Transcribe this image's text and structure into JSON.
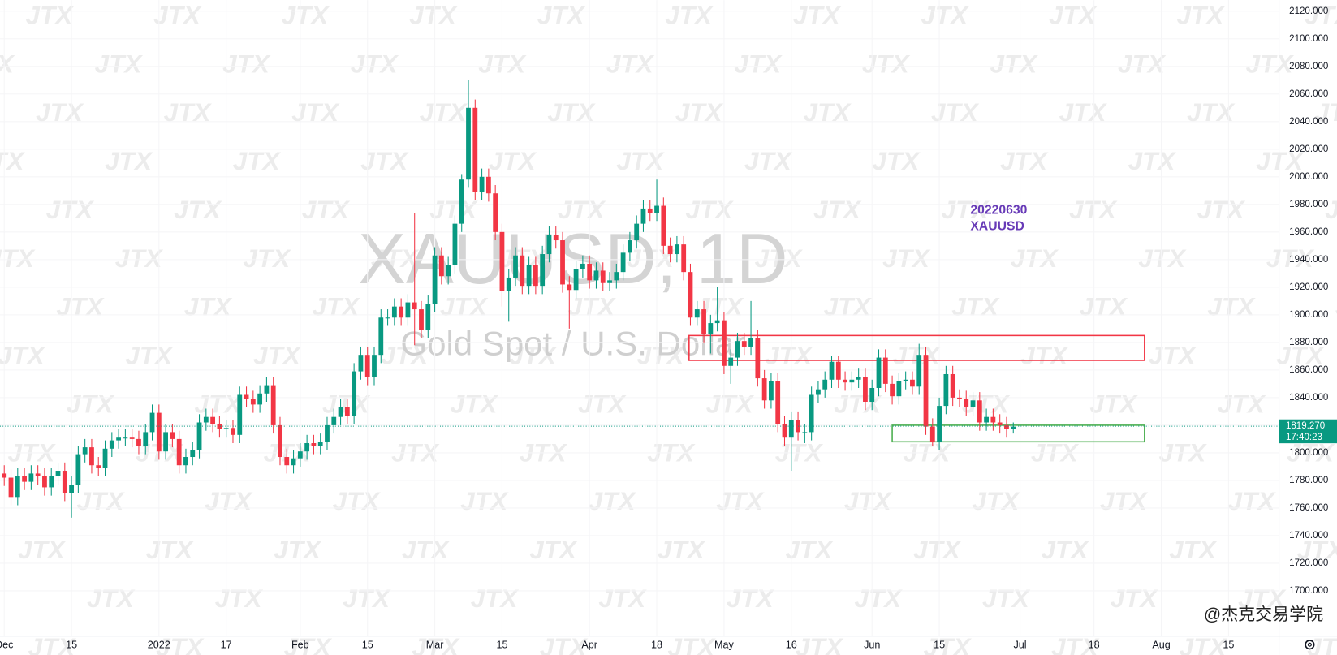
{
  "chart_data": {
    "type": "candlestick",
    "title": "XAUUSD, 1D",
    "subtitle": "Gold Spot / U.S. Dollar",
    "annotation": [
      "20220630",
      "XAUUSD"
    ],
    "watermark": "JTX",
    "credit": "@杰克交易学院",
    "up_color": "#089981",
    "down_color": "#f23645",
    "annotation_color": "#673ab7",
    "grid": true,
    "ylim": [
      1667.2,
      2128.0
    ],
    "yticks": [
      {
        "value": 1700,
        "label": "1700.000"
      },
      {
        "value": 1720,
        "label": "1720.000"
      },
      {
        "value": 1740,
        "label": "1740.000"
      },
      {
        "value": 1760,
        "label": "1760.000"
      },
      {
        "value": 1780,
        "label": "1780.000"
      },
      {
        "value": 1800,
        "label": "1800.000"
      },
      {
        "value": 1820,
        "label": "1820.000"
      },
      {
        "value": 1840,
        "label": "1840.000"
      },
      {
        "value": 1860,
        "label": "1860.000"
      },
      {
        "value": 1880,
        "label": "1880.000"
      },
      {
        "value": 1900,
        "label": "1900.000"
      },
      {
        "value": 1920,
        "label": "1920.000"
      },
      {
        "value": 1940,
        "label": "1940.000"
      },
      {
        "value": 1960,
        "label": "1960.000"
      },
      {
        "value": 1980,
        "label": "1980.000"
      },
      {
        "value": 2000,
        "label": "2000.000"
      },
      {
        "value": 2020,
        "label": "2020.000"
      },
      {
        "value": 2040,
        "label": "2040.000"
      },
      {
        "value": 2060,
        "label": "2060.000"
      },
      {
        "value": 2080,
        "label": "2080.000"
      },
      {
        "value": 2100,
        "label": "2100.000"
      },
      {
        "value": 2120,
        "label": "2120.000"
      }
    ],
    "xlim": [
      -0.63,
      189.5
    ],
    "xticks": [
      {
        "value": 0,
        "label": "Dec"
      },
      {
        "value": 10,
        "label": "15"
      },
      {
        "value": 23,
        "label": "2022"
      },
      {
        "value": 33,
        "label": "17"
      },
      {
        "value": 44,
        "label": "Feb"
      },
      {
        "value": 54,
        "label": "15"
      },
      {
        "value": 64,
        "label": "Mar"
      },
      {
        "value": 74,
        "label": "15"
      },
      {
        "value": 87,
        "label": "Apr"
      },
      {
        "value": 97,
        "label": "18"
      },
      {
        "value": 107,
        "label": "May"
      },
      {
        "value": 117,
        "label": "16"
      },
      {
        "value": 129,
        "label": "Jun"
      },
      {
        "value": 139,
        "label": "15"
      },
      {
        "value": 151,
        "label": "Jul"
      },
      {
        "value": 162,
        "label": "18"
      },
      {
        "value": 172,
        "label": "Aug"
      },
      {
        "value": 182,
        "label": "15"
      }
    ],
    "last_price": {
      "value": 1819.27,
      "label": "1819.270"
    },
    "countdown": "17:40:23",
    "rectangles": [
      {
        "color": "#f23645",
        "x": [
          101.8,
          169.5
        ],
        "y": [
          1867,
          1885
        ]
      },
      {
        "color": "#4caf50",
        "x": [
          132,
          169.5
        ],
        "y": [
          1808,
          1820
        ]
      }
    ],
    "open": [
      1785,
      1782,
      1768,
      1783,
      1779,
      1785,
      1783,
      1775,
      1783,
      1787,
      1771,
      1777,
      1799,
      1804,
      1791,
      1789,
      1803,
      1809,
      1811,
      1811,
      1810,
      1805,
      1815,
      1829,
      1801,
      1815,
      1810,
      1791,
      1797,
      1802,
      1822,
      1826,
      1821,
      1817,
      1818,
      1813,
      1842,
      1839,
      1835,
      1843,
      1849,
      1820,
      1797,
      1791,
      1796,
      1801,
      1807,
      1805,
      1808,
      1820,
      1826,
      1833,
      1827,
      1859,
      1871,
      1855,
      1871,
      1898,
      1898,
      1906,
      1898,
      1909,
      1904,
      1889,
      1908,
      1943,
      1928,
      1936,
      1966,
      1998,
      2050,
      1989,
      2000,
      1988,
      1960,
      1917,
      1927,
      1943,
      1921,
      1936,
      1921,
      1944,
      1958,
      1954,
      1922,
      1918,
      1933,
      1937,
      1925,
      1932,
      1923,
      1925,
      1931,
      1945,
      1954,
      1966,
      1977,
      1974,
      1979,
      1950,
      1944,
      1951,
      1931,
      1898,
      1904,
      1886,
      1894,
      1896,
      1863,
      1869,
      1881,
      1877,
      1883,
      1854,
      1838,
      1852,
      1821,
      1811,
      1824,
      1815,
      1815,
      1842,
      1846,
      1853,
      1866,
      1853,
      1851,
      1853,
      1855,
      1837,
      1847,
      1869,
      1850,
      1841,
      1852,
      1853,
      1848,
      1871,
      1819,
      1808,
      1834,
      1857,
      1840,
      1839,
      1833,
      1838,
      1822,
      1826,
      1822,
      1820,
      1817
    ],
    "high": [
      1791,
      1788,
      1789,
      1789,
      1791,
      1791,
      1789,
      1789,
      1793,
      1793,
      1783,
      1805,
      1810,
      1810,
      1797,
      1809,
      1815,
      1817,
      1817,
      1817,
      1816,
      1821,
      1835,
      1835,
      1821,
      1821,
      1816,
      1803,
      1808,
      1828,
      1832,
      1832,
      1827,
      1824,
      1824,
      1848,
      1848,
      1845,
      1849,
      1855,
      1855,
      1826,
      1803,
      1802,
      1807,
      1813,
      1813,
      1814,
      1826,
      1832,
      1839,
      1839,
      1865,
      1877,
      1877,
      1877,
      1904,
      1904,
      1912,
      1912,
      1915,
      1974,
      1910,
      1914,
      1949,
      1949,
      1942,
      1972,
      2002,
      2070,
      2056,
      2006,
      2006,
      1994,
      1966,
      1933,
      1949,
      1949,
      1942,
      1942,
      1950,
      1964,
      1964,
      1960,
      1928,
      1939,
      1943,
      1943,
      1938,
      1938,
      1931,
      1937,
      1951,
      1960,
      1972,
      1983,
      1983,
      1998,
      1985,
      1956,
      1957,
      1957,
      1937,
      1910,
      1910,
      1900,
      1920,
      1902,
      1875,
      1887,
      1887,
      1910,
      1889,
      1860,
      1858,
      1858,
      1827,
      1830,
      1830,
      1821,
      1848,
      1852,
      1859,
      1870,
      1870,
      1859,
      1859,
      1861,
      1861,
      1853,
      1875,
      1875,
      1856,
      1858,
      1859,
      1859,
      1879,
      1877,
      1825,
      1840,
      1863,
      1863,
      1846,
      1845,
      1844,
      1844,
      1832,
      1832,
      1828,
      1826,
      1822
    ],
    "low": [
      1776,
      1762,
      1762,
      1773,
      1773,
      1777,
      1769,
      1769,
      1777,
      1765,
      1753,
      1771,
      1793,
      1785,
      1783,
      1783,
      1797,
      1803,
      1805,
      1804,
      1799,
      1799,
      1809,
      1795,
      1795,
      1804,
      1785,
      1785,
      1791,
      1796,
      1816,
      1815,
      1811,
      1811,
      1807,
      1807,
      1833,
      1829,
      1829,
      1837,
      1814,
      1791,
      1785,
      1785,
      1790,
      1795,
      1799,
      1799,
      1802,
      1814,
      1820,
      1821,
      1821,
      1853,
      1849,
      1849,
      1865,
      1892,
      1892,
      1892,
      1892,
      1878,
      1883,
      1883,
      1902,
      1922,
      1922,
      1930,
      1960,
      1992,
      1983,
      1983,
      1982,
      1954,
      1906,
      1895,
      1921,
      1915,
      1915,
      1915,
      1915,
      1938,
      1948,
      1916,
      1890,
      1912,
      1927,
      1919,
      1919,
      1917,
      1917,
      1919,
      1925,
      1939,
      1948,
      1960,
      1968,
      1968,
      1944,
      1938,
      1938,
      1925,
      1892,
      1892,
      1880,
      1872,
      1888,
      1857,
      1850,
      1863,
      1871,
      1871,
      1848,
      1832,
      1832,
      1815,
      1805,
      1787,
      1809,
      1807,
      1809,
      1836,
      1840,
      1847,
      1847,
      1845,
      1845,
      1847,
      1831,
      1831,
      1841,
      1844,
      1835,
      1835,
      1846,
      1842,
      1842,
      1813,
      1805,
      1802,
      1828,
      1834,
      1833,
      1827,
      1827,
      1816,
      1816,
      1816,
      1814,
      1811,
      1814
    ],
    "close": [
      1782,
      1768,
      1783,
      1779,
      1785,
      1783,
      1775,
      1783,
      1787,
      1771,
      1777,
      1799,
      1804,
      1791,
      1789,
      1803,
      1809,
      1811,
      1811,
      1810,
      1805,
      1815,
      1829,
      1801,
      1815,
      1810,
      1791,
      1797,
      1802,
      1822,
      1826,
      1821,
      1817,
      1818,
      1813,
      1842,
      1839,
      1835,
      1843,
      1849,
      1820,
      1797,
      1791,
      1796,
      1801,
      1807,
      1805,
      1808,
      1820,
      1826,
      1833,
      1827,
      1859,
      1871,
      1855,
      1871,
      1898,
      1898,
      1906,
      1898,
      1909,
      1904,
      1889,
      1908,
      1943,
      1928,
      1936,
      1966,
      1998,
      2050,
      1989,
      2000,
      1988,
      1960,
      1917,
      1927,
      1943,
      1921,
      1936,
      1921,
      1944,
      1958,
      1954,
      1922,
      1918,
      1933,
      1937,
      1925,
      1932,
      1923,
      1925,
      1931,
      1945,
      1954,
      1966,
      1977,
      1974,
      1979,
      1950,
      1944,
      1951,
      1931,
      1898,
      1904,
      1886,
      1894,
      1896,
      1863,
      1869,
      1881,
      1877,
      1883,
      1854,
      1838,
      1852,
      1821,
      1811,
      1824,
      1815,
      1815,
      1842,
      1846,
      1853,
      1866,
      1853,
      1851,
      1853,
      1855,
      1837,
      1847,
      1869,
      1850,
      1841,
      1852,
      1853,
      1848,
      1871,
      1819,
      1808,
      1834,
      1857,
      1840,
      1839,
      1833,
      1838,
      1822,
      1826,
      1822,
      1820,
      1817,
      1819
    ]
  }
}
